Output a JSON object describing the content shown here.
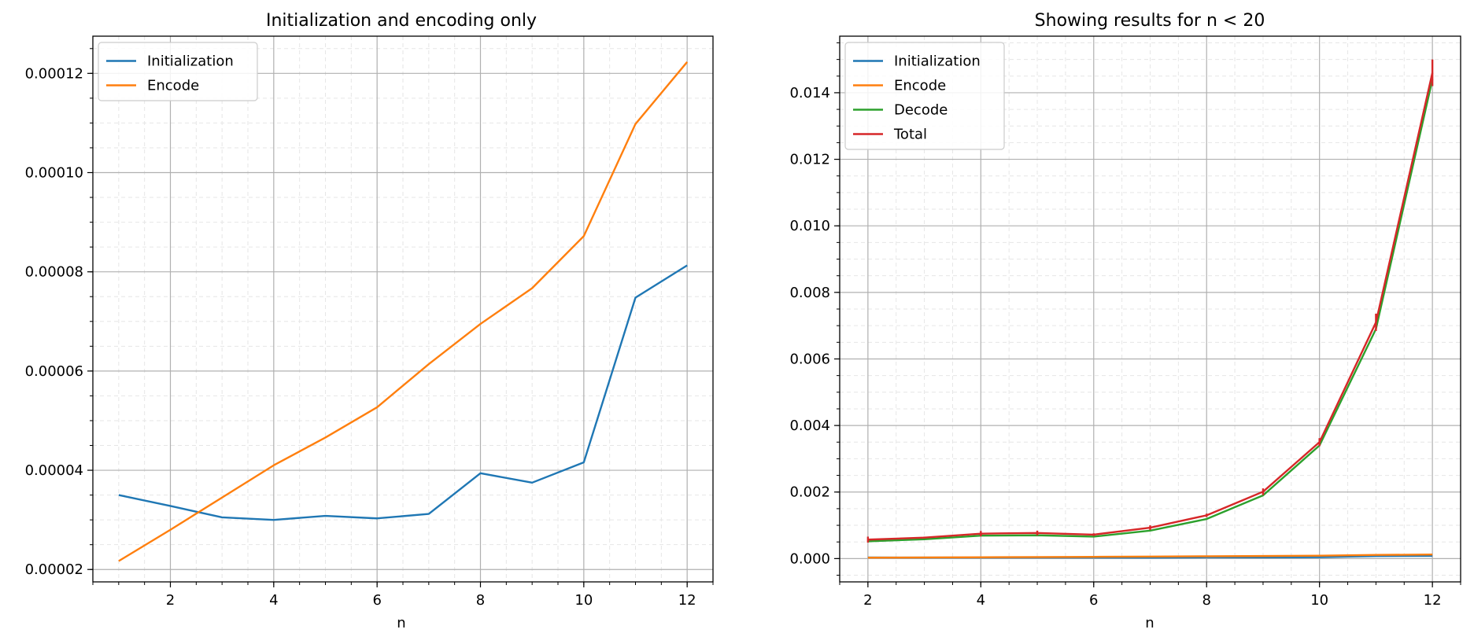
{
  "chart_data": [
    {
      "type": "line",
      "title": "Initialization and encoding only",
      "xlabel": "n",
      "ylabel": "",
      "xlim": [
        0.5,
        12.5
      ],
      "ylim": [
        1.75e-05,
        0.0001275
      ],
      "xticks": [
        2,
        4,
        6,
        8,
        10,
        12
      ],
      "xtick_labels": [
        "2",
        "4",
        "6",
        "8",
        "10",
        "12"
      ],
      "yticks": [
        2e-05,
        4e-05,
        6e-05,
        8e-05,
        0.0001,
        0.00012
      ],
      "ytick_labels": [
        "0.00002",
        "0.00004",
        "0.00006",
        "0.00008",
        "0.00010",
        "0.00012"
      ],
      "grid": true,
      "minor_grid": true,
      "legend_position": "top-left",
      "series": [
        {
          "name": "Initialization",
          "color": "#1f77b4",
          "x": [
            1,
            2,
            3,
            4,
            5,
            6,
            7,
            8,
            9,
            10,
            11,
            12
          ],
          "y": [
            3.5e-05,
            3.28e-05,
            3.05e-05,
            3e-05,
            3.08e-05,
            3.03e-05,
            3.12e-05,
            3.94e-05,
            3.75e-05,
            4.16e-05,
            7.48e-05,
            8.13e-05
          ],
          "err": []
        },
        {
          "name": "Encode",
          "color": "#ff7f0e",
          "x": [
            1,
            2,
            3,
            4,
            5,
            6,
            7,
            8,
            9,
            10,
            11,
            12
          ],
          "y": [
            2.17e-05,
            2.8e-05,
            3.45e-05,
            4.1e-05,
            4.66e-05,
            5.27e-05,
            6.14e-05,
            6.95e-05,
            7.67e-05,
            8.72e-05,
            0.0001098,
            0.0001223
          ],
          "err": []
        }
      ]
    },
    {
      "type": "line",
      "title": "Showing results for n < 20",
      "xlabel": "n",
      "ylabel": "",
      "xlim": [
        1.5,
        12.5
      ],
      "ylim": [
        -0.0007,
        0.0157
      ],
      "xticks": [
        2,
        4,
        6,
        8,
        10,
        12
      ],
      "xtick_labels": [
        "2",
        "4",
        "6",
        "8",
        "10",
        "12"
      ],
      "yticks": [
        0,
        0.002,
        0.004,
        0.006,
        0.008,
        0.01,
        0.012,
        0.014
      ],
      "ytick_labels": [
        "0.000",
        "0.002",
        "0.004",
        "0.006",
        "0.008",
        "0.010",
        "0.012",
        "0.014"
      ],
      "grid": true,
      "minor_grid": true,
      "legend_position": "top-left",
      "series": [
        {
          "name": "Initialization",
          "color": "#1f77b4",
          "x": [
            2,
            3,
            4,
            5,
            6,
            7,
            8,
            9,
            10,
            11,
            12
          ],
          "y": [
            3.3e-05,
            3.1e-05,
            3e-05,
            3.1e-05,
            3e-05,
            3.1e-05,
            3.9e-05,
            3.8e-05,
            4.2e-05,
            7.5e-05,
            8.1e-05
          ],
          "err": []
        },
        {
          "name": "Encode",
          "color": "#ff7f0e",
          "x": [
            2,
            3,
            4,
            5,
            6,
            7,
            8,
            9,
            10,
            11,
            12
          ],
          "y": [
            2.8e-05,
            3.5e-05,
            4.1e-05,
            4.7e-05,
            5.3e-05,
            6.1e-05,
            7e-05,
            7.7e-05,
            8.7e-05,
            0.00011,
            0.000122
          ],
          "err": []
        },
        {
          "name": "Decode",
          "color": "#2ca02c",
          "x": [
            2,
            3,
            4,
            5,
            6,
            7,
            8,
            9,
            10,
            11,
            12
          ],
          "y": [
            0.00052,
            0.00058,
            0.00069,
            0.0007,
            0.00066,
            0.00084,
            0.00119,
            0.0019,
            0.0034,
            0.0069,
            0.0144
          ],
          "err": []
        },
        {
          "name": "Total",
          "color": "#d62728",
          "x": [
            2,
            3,
            4,
            5,
            6,
            7,
            8,
            9,
            10,
            11,
            12
          ],
          "y": [
            0.00057,
            0.00063,
            0.00075,
            0.00077,
            0.00072,
            0.00093,
            0.0013,
            0.00201,
            0.0035,
            0.0071,
            0.0146
          ],
          "err": [
            9e-05,
            3e-05,
            8e-05,
            7e-05,
            4e-05,
            7e-05,
            5e-05,
            0.0001,
            0.00012,
            0.00026,
            0.0004
          ]
        }
      ]
    }
  ]
}
